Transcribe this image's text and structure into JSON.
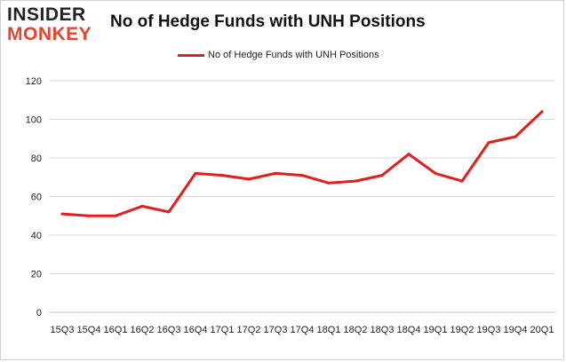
{
  "logo": {
    "line1": "INSIDER",
    "line2": "MONKEY"
  },
  "chart_data": {
    "type": "line",
    "title": "No of Hedge Funds with UNH Positions",
    "xlabel": "",
    "ylabel": "",
    "categories": [
      "15Q3",
      "15Q4",
      "16Q1",
      "16Q2",
      "16Q3",
      "16Q4",
      "17Q1",
      "17Q2",
      "17Q3",
      "17Q4",
      "18Q1",
      "18Q2",
      "18Q3",
      "18Q4",
      "19Q1",
      "19Q2",
      "19Q3",
      "19Q4",
      "20Q1"
    ],
    "series": [
      {
        "name": "No of Hedge Funds with UNH  Positions",
        "values": [
          51,
          50,
          50,
          55,
          52,
          72,
          71,
          69,
          72,
          71,
          67,
          68,
          71,
          82,
          72,
          68,
          88,
          91,
          104
        ],
        "color": "#e51d1d"
      }
    ],
    "ylim": [
      0,
      120
    ],
    "yticks": [
      0,
      20,
      40,
      60,
      80,
      100,
      120
    ],
    "grid": true,
    "legend_position": "top-center"
  }
}
